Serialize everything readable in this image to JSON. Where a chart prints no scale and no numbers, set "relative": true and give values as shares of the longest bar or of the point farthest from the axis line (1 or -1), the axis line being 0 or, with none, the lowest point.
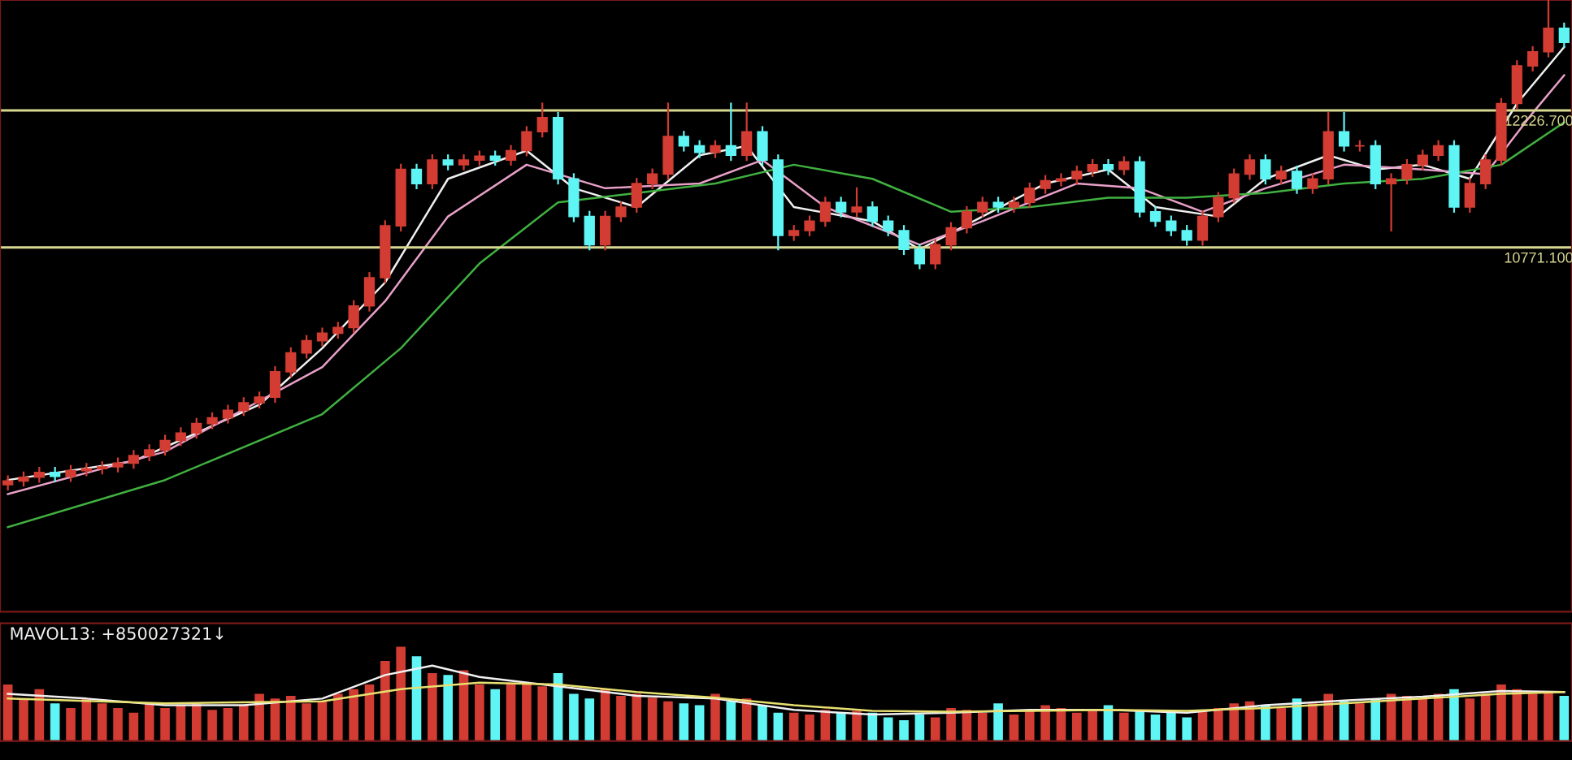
{
  "chart_data": [
    {
      "type": "candlestick",
      "categories": [
        null,
        null,
        null,
        null,
        null,
        null,
        null,
        null,
        null,
        null,
        null,
        null,
        null,
        null,
        null,
        null,
        null,
        null,
        null,
        null,
        null,
        null,
        null,
        null,
        null,
        null,
        null,
        null,
        null,
        null,
        null,
        null,
        null,
        null,
        null,
        null,
        null,
        null,
        null,
        null,
        null,
        null,
        null,
        null,
        null,
        null,
        null,
        null,
        null,
        null,
        null,
        null,
        null,
        null,
        null,
        null,
        null,
        null,
        null,
        null,
        null,
        null,
        null,
        null,
        null,
        null,
        null,
        null,
        null,
        null,
        null,
        null,
        null,
        null,
        null,
        null,
        null,
        null,
        null,
        null,
        null,
        null,
        null,
        null,
        null,
        null,
        null,
        null,
        null,
        null,
        null,
        null,
        null,
        null,
        null,
        null,
        null,
        null,
        null,
        null
      ],
      "ohlc": [
        [
          8250,
          8340,
          8200,
          8290
        ],
        [
          8290,
          8380,
          8240,
          8330
        ],
        [
          8330,
          8430,
          8280,
          8380
        ],
        [
          8380,
          8430,
          8290,
          8340
        ],
        [
          8340,
          8450,
          8290,
          8400
        ],
        [
          8400,
          8470,
          8350,
          8420
        ],
        [
          8420,
          8490,
          8370,
          8440
        ],
        [
          8440,
          8530,
          8390,
          8480
        ],
        [
          8480,
          8610,
          8430,
          8560
        ],
        [
          8560,
          8670,
          8510,
          8620
        ],
        [
          8620,
          8770,
          8570,
          8720
        ],
        [
          8720,
          8850,
          8670,
          8800
        ],
        [
          8800,
          8950,
          8750,
          8900
        ],
        [
          8900,
          9010,
          8850,
          8960
        ],
        [
          8960,
          9090,
          8910,
          9040
        ],
        [
          9040,
          9170,
          8990,
          9120
        ],
        [
          9120,
          9230,
          9070,
          9180
        ],
        [
          9180,
          9500,
          9130,
          9450
        ],
        [
          9450,
          9700,
          9400,
          9650
        ],
        [
          9650,
          9830,
          9600,
          9780
        ],
        [
          9780,
          9910,
          9730,
          9860
        ],
        [
          9860,
          9970,
          9810,
          9920
        ],
        [
          9920,
          10200,
          9870,
          10150
        ],
        [
          10150,
          10500,
          10100,
          10450
        ],
        [
          10450,
          11050,
          10400,
          11000
        ],
        [
          11000,
          11650,
          10950,
          11600
        ],
        [
          11600,
          11650,
          11400,
          11450
        ],
        [
          11450,
          11750,
          11400,
          11700
        ],
        [
          11700,
          11750,
          11600,
          11650
        ],
        [
          11650,
          11750,
          11600,
          11700
        ],
        [
          11700,
          11790,
          11650,
          11740
        ],
        [
          11740,
          11790,
          11650,
          11700
        ],
        [
          11700,
          11850,
          11650,
          11800
        ],
        [
          11800,
          12050,
          11750,
          12000
        ],
        [
          12000,
          12300,
          11950,
          12150
        ],
        [
          12150,
          12200,
          11450,
          11500
        ],
        [
          11500,
          11550,
          11050,
          11100
        ],
        [
          11100,
          11150,
          10750,
          10800
        ],
        [
          10800,
          11150,
          10750,
          11100
        ],
        [
          11100,
          11250,
          11050,
          11200
        ],
        [
          11200,
          11500,
          11150,
          11450
        ],
        [
          11450,
          11600,
          11400,
          11550
        ],
        [
          11550,
          12300,
          11500,
          11950
        ],
        [
          11950,
          12000,
          11800,
          11850
        ],
        [
          11850,
          11900,
          11730,
          11780
        ],
        [
          11780,
          11900,
          11730,
          11850
        ],
        [
          11850,
          12300,
          11700,
          11750
        ],
        [
          11750,
          12300,
          11700,
          12000
        ],
        [
          12000,
          12050,
          11650,
          11700
        ],
        [
          11700,
          11750,
          10750,
          10900
        ],
        [
          10900,
          11000,
          10850,
          10950
        ],
        [
          10950,
          11100,
          10900,
          11050
        ],
        [
          11050,
          11300,
          11000,
          11250
        ],
        [
          11250,
          11300,
          11100,
          11150
        ],
        [
          11150,
          11400,
          11100,
          11200
        ],
        [
          11200,
          11250,
          11000,
          11050
        ],
        [
          11050,
          11100,
          10900,
          10950
        ],
        [
          10950,
          11000,
          10700,
          10750
        ],
        [
          10750,
          10800,
          10550,
          10600
        ],
        [
          10600,
          10850,
          10550,
          10800
        ],
        [
          10800,
          11030,
          10750,
          10980
        ],
        [
          10980,
          11200,
          10930,
          11150
        ],
        [
          11150,
          11300,
          11100,
          11250
        ],
        [
          11250,
          11300,
          11150,
          11200
        ],
        [
          11200,
          11300,
          11150,
          11250
        ],
        [
          11250,
          11450,
          11200,
          11400
        ],
        [
          11400,
          11530,
          11350,
          11480
        ],
        [
          11480,
          11550,
          11430,
          11500
        ],
        [
          11500,
          11630,
          11450,
          11580
        ],
        [
          11580,
          11700,
          11530,
          11650
        ],
        [
          11650,
          11700,
          11550,
          11600
        ],
        [
          11600,
          11730,
          11550,
          11680
        ],
        [
          11680,
          11730,
          11100,
          11150
        ],
        [
          11150,
          11200,
          11000,
          11050
        ],
        [
          11050,
          11100,
          10900,
          10950
        ],
        [
          10950,
          11000,
          10800,
          10850
        ],
        [
          10850,
          11150,
          10800,
          11100
        ],
        [
          11100,
          11350,
          11050,
          11300
        ],
        [
          11300,
          11600,
          11250,
          11550
        ],
        [
          11550,
          11750,
          11500,
          11700
        ],
        [
          11700,
          11750,
          11450,
          11500
        ],
        [
          11500,
          11630,
          11450,
          11580
        ],
        [
          11580,
          11630,
          11350,
          11400
        ],
        [
          11400,
          11550,
          11350,
          11500
        ],
        [
          11500,
          12200,
          11450,
          12000
        ],
        [
          12000,
          12200,
          11800,
          11850
        ],
        [
          11850,
          11900,
          11800,
          11850
        ],
        [
          11850,
          11900,
          11400,
          11450
        ],
        [
          11450,
          11550,
          10950,
          11500
        ],
        [
          11500,
          11700,
          11450,
          11650
        ],
        [
          11650,
          11800,
          11600,
          11750
        ],
        [
          11750,
          11900,
          11700,
          11850
        ],
        [
          11850,
          11900,
          11150,
          11200
        ],
        [
          11200,
          11500,
          11150,
          11450
        ],
        [
          11450,
          11750,
          11400,
          11700
        ],
        [
          11700,
          12350,
          11650,
          12300
        ],
        [
          12300,
          12750,
          12250,
          12700
        ],
        [
          12700,
          12900,
          12650,
          12850
        ],
        [
          12850,
          13400,
          12800,
          13100
        ],
        [
          13100,
          13150,
          12900,
          12950
        ]
      ],
      "colors": [
        "#d23c32",
        "#d23c32",
        "#d23c32",
        "#5ff5f5",
        "#d23c32",
        "#d23c32",
        "#d23c32",
        "#d23c32",
        "#d23c32",
        "#d23c32",
        "#d23c32",
        "#d23c32",
        "#d23c32",
        "#d23c32",
        "#d23c32",
        "#d23c32",
        "#d23c32",
        "#d23c32",
        "#d23c32",
        "#d23c32",
        "#d23c32",
        "#d23c32",
        "#d23c32",
        "#d23c32",
        "#d23c32",
        "#d23c32",
        "#5ff5f5",
        "#d23c32",
        "#5ff5f5",
        "#d23c32",
        "#d23c32",
        "#5ff5f5",
        "#d23c32",
        "#d23c32",
        "#d23c32",
        "#5ff5f5",
        "#5ff5f5",
        "#5ff5f5",
        "#d23c32",
        "#d23c32",
        "#d23c32",
        "#d23c32",
        "#d23c32",
        "#5ff5f5",
        "#5ff5f5",
        "#d23c32",
        "#5ff5f5",
        "#d23c32",
        "#5ff5f5",
        "#5ff5f5",
        "#d23c32",
        "#d23c32",
        "#d23c32",
        "#5ff5f5",
        "#d23c32",
        "#5ff5f5",
        "#5ff5f5",
        "#5ff5f5",
        "#5ff5f5",
        "#d23c32",
        "#d23c32",
        "#d23c32",
        "#d23c32",
        "#5ff5f5",
        "#d23c32",
        "#d23c32",
        "#d23c32",
        "#d23c32",
        "#d23c32",
        "#d23c32",
        "#5ff5f5",
        "#d23c32",
        "#5ff5f5",
        "#5ff5f5",
        "#5ff5f5",
        "#5ff5f5",
        "#d23c32",
        "#d23c32",
        "#d23c32",
        "#d23c32",
        "#5ff5f5",
        "#d23c32",
        "#5ff5f5",
        "#d23c32",
        "#d23c32",
        "#5ff5f5",
        "#d23c32",
        "#5ff5f5",
        "#d23c32",
        "#d23c32",
        "#d23c32",
        "#d23c32",
        "#5ff5f5",
        "#d23c32",
        "#d23c32",
        "#d23c32",
        "#d23c32",
        "#d23c32",
        "#d23c32",
        "#5ff5f5"
      ],
      "series": [
        {
          "type": "line",
          "color": "#f0f0f0",
          "values": [
            8300,
            null,
            null,
            null,
            null,
            null,
            null,
            null,
            8500,
            null,
            null,
            null,
            null,
            null,
            null,
            null,
            9100,
            null,
            null,
            null,
            9700,
            null,
            null,
            null,
            10400,
            null,
            null,
            null,
            11500,
            null,
            null,
            null,
            null,
            11800,
            null,
            null,
            11400,
            null,
            null,
            null,
            11200,
            null,
            null,
            null,
            11750,
            null,
            null,
            11850,
            null,
            null,
            11200,
            null,
            null,
            null,
            null,
            11050,
            null,
            null,
            10750,
            null,
            null,
            null,
            11100,
            null,
            null,
            null,
            11450,
            null,
            null,
            null,
            11600,
            null,
            null,
            11200,
            null,
            null,
            null,
            11100,
            null,
            null,
            11500,
            null,
            null,
            null,
            11750,
            null,
            null,
            11600,
            null,
            null,
            11650,
            null,
            null,
            11500,
            null,
            null,
            12300,
            null,
            null,
            12900
          ]
        },
        {
          "type": "line",
          "color": "#e8a0c8",
          "values": [
            8150,
            null,
            null,
            null,
            null,
            null,
            null,
            null,
            null,
            null,
            8600,
            null,
            null,
            null,
            null,
            null,
            null,
            null,
            null,
            null,
            9500,
            null,
            null,
            null,
            10200,
            null,
            null,
            null,
            11100,
            null,
            null,
            null,
            null,
            11650,
            null,
            null,
            null,
            null,
            11400,
            null,
            null,
            null,
            null,
            null,
            11450,
            null,
            null,
            null,
            11700,
            null,
            null,
            null,
            11200,
            null,
            null,
            null,
            null,
            null,
            10800,
            null,
            null,
            null,
            11050,
            null,
            null,
            null,
            null,
            null,
            11450,
            null,
            null,
            null,
            11400,
            null,
            null,
            null,
            11150,
            null,
            null,
            null,
            11400,
            null,
            null,
            null,
            null,
            11650,
            null,
            null,
            null,
            null,
            11600,
            null,
            null,
            null,
            11550,
            null,
            null,
            12200,
            null,
            12600
          ]
        },
        {
          "type": "line",
          "color": "#40b040",
          "values": [
            7800,
            null,
            null,
            null,
            null,
            null,
            null,
            null,
            null,
            null,
            8300,
            null,
            null,
            null,
            null,
            null,
            null,
            null,
            null,
            null,
            9000,
            null,
            null,
            null,
            null,
            9700,
            null,
            null,
            null,
            null,
            10600,
            null,
            null,
            null,
            null,
            11250,
            null,
            null,
            null,
            null,
            11350,
            null,
            null,
            null,
            null,
            11450,
            null,
            null,
            null,
            null,
            11650,
            null,
            null,
            null,
            null,
            11500,
            null,
            null,
            null,
            null,
            11150,
            null,
            null,
            null,
            null,
            11200,
            null,
            null,
            null,
            null,
            11300,
            null,
            null,
            null,
            null,
            11300,
            null,
            null,
            null,
            null,
            11350,
            null,
            null,
            null,
            null,
            11450,
            null,
            null,
            null,
            null,
            11500,
            null,
            null,
            null,
            null,
            11650,
            null,
            null,
            null,
            12100
          ]
        }
      ],
      "ylim": [
        6900,
        13400
      ],
      "ref_lines": [
        {
          "axis": "y",
          "value": 12226.7,
          "label": "12226.700",
          "color": "#d8d890"
        },
        {
          "axis": "y",
          "value": 10771.1,
          "label": "10771.100",
          "color": "#d8d890"
        }
      ],
      "tick_labels": false
    },
    {
      "type": "bar",
      "relative": true,
      "categories": [
        null,
        null,
        null,
        null,
        null,
        null,
        null,
        null,
        null,
        null,
        null,
        null,
        null,
        null,
        null,
        null,
        null,
        null,
        null,
        null,
        null,
        null,
        null,
        null,
        null,
        null,
        null,
        null,
        null,
        null,
        null,
        null,
        null,
        null,
        null,
        null,
        null,
        null,
        null,
        null,
        null,
        null,
        null,
        null,
        null,
        null,
        null,
        null,
        null,
        null,
        null,
        null,
        null,
        null,
        null,
        null,
        null,
        null,
        null,
        null,
        null,
        null,
        null,
        null,
        null,
        null,
        null,
        null,
        null,
        null,
        null,
        null,
        null,
        null,
        null,
        null,
        null,
        null,
        null,
        null,
        null,
        null,
        null,
        null,
        null,
        null,
        null,
        null,
        null,
        null,
        null,
        null,
        null,
        null,
        null,
        null,
        null,
        null,
        null,
        null
      ],
      "annotations": [
        "MAVOL13: +850027321↓"
      ],
      "series": [
        {
          "type": "bar",
          "values": [
            0.6,
            0.45,
            0.55,
            0.4,
            0.35,
            0.45,
            0.4,
            0.35,
            0.3,
            0.4,
            0.35,
            0.38,
            0.4,
            0.33,
            0.35,
            0.38,
            0.5,
            0.45,
            0.48,
            0.4,
            0.42,
            0.5,
            0.55,
            0.6,
            0.85,
            1.0,
            0.9,
            0.72,
            0.7,
            0.75,
            0.6,
            0.55,
            0.62,
            0.6,
            0.58,
            0.72,
            0.5,
            0.45,
            0.55,
            0.48,
            0.5,
            0.46,
            0.42,
            0.4,
            0.38,
            0.5,
            0.42,
            0.45,
            0.38,
            0.3,
            0.3,
            0.28,
            0.33,
            0.3,
            0.32,
            0.3,
            0.25,
            0.22,
            0.28,
            0.25,
            0.35,
            0.33,
            0.3,
            0.4,
            0.28,
            0.32,
            0.38,
            0.35,
            0.3,
            0.32,
            0.38,
            0.3,
            0.32,
            0.28,
            0.3,
            0.25,
            0.33,
            0.35,
            0.4,
            0.42,
            0.38,
            0.35,
            0.45,
            0.4,
            0.5,
            0.42,
            0.4,
            0.45,
            0.5,
            0.48,
            0.45,
            0.5,
            0.55,
            0.45,
            0.5,
            0.6,
            0.55,
            0.5,
            0.52,
            0.48
          ],
          "colors": [
            "#d23c32",
            "#d23c32",
            "#d23c32",
            "#5ff5f5",
            "#d23c32",
            "#d23c32",
            "#d23c32",
            "#d23c32",
            "#d23c32",
            "#d23c32",
            "#d23c32",
            "#d23c32",
            "#d23c32",
            "#d23c32",
            "#d23c32",
            "#d23c32",
            "#d23c32",
            "#d23c32",
            "#d23c32",
            "#d23c32",
            "#d23c32",
            "#d23c32",
            "#d23c32",
            "#d23c32",
            "#d23c32",
            "#d23c32",
            "#5ff5f5",
            "#d23c32",
            "#5ff5f5",
            "#d23c32",
            "#d23c32",
            "#5ff5f5",
            "#d23c32",
            "#d23c32",
            "#d23c32",
            "#5ff5f5",
            "#5ff5f5",
            "#5ff5f5",
            "#d23c32",
            "#d23c32",
            "#d23c32",
            "#d23c32",
            "#d23c32",
            "#5ff5f5",
            "#5ff5f5",
            "#d23c32",
            "#5ff5f5",
            "#d23c32",
            "#5ff5f5",
            "#5ff5f5",
            "#d23c32",
            "#d23c32",
            "#d23c32",
            "#5ff5f5",
            "#d23c32",
            "#5ff5f5",
            "#5ff5f5",
            "#5ff5f5",
            "#5ff5f5",
            "#d23c32",
            "#d23c32",
            "#d23c32",
            "#d23c32",
            "#5ff5f5",
            "#d23c32",
            "#d23c32",
            "#d23c32",
            "#d23c32",
            "#d23c32",
            "#d23c32",
            "#5ff5f5",
            "#d23c32",
            "#5ff5f5",
            "#5ff5f5",
            "#5ff5f5",
            "#5ff5f5",
            "#d23c32",
            "#d23c32",
            "#d23c32",
            "#d23c32",
            "#5ff5f5",
            "#d23c32",
            "#5ff5f5",
            "#d23c32",
            "#d23c32",
            "#5ff5f5",
            "#d23c32",
            "#5ff5f5",
            "#d23c32",
            "#d23c32",
            "#d23c32",
            "#d23c32",
            "#5ff5f5",
            "#d23c32",
            "#d23c32",
            "#d23c32",
            "#d23c32",
            "#d23c32",
            "#d23c32",
            "#5ff5f5"
          ]
        },
        {
          "type": "line",
          "color": "#f0f0f0",
          "values": [
            0.5,
            null,
            null,
            null,
            null,
            0.45,
            null,
            null,
            null,
            null,
            0.38,
            null,
            null,
            null,
            null,
            0.38,
            null,
            null,
            null,
            null,
            0.45,
            null,
            null,
            null,
            0.7,
            null,
            null,
            0.8,
            null,
            null,
            0.68,
            null,
            null,
            null,
            null,
            0.58,
            null,
            null,
            null,
            null,
            0.48,
            null,
            null,
            null,
            null,
            0.45,
            null,
            null,
            null,
            null,
            0.33,
            null,
            null,
            null,
            null,
            0.28,
            null,
            null,
            null,
            null,
            0.3,
            null,
            null,
            null,
            null,
            0.33,
            null,
            null,
            null,
            null,
            0.33,
            null,
            null,
            null,
            null,
            0.3,
            null,
            null,
            null,
            null,
            0.38,
            null,
            null,
            null,
            null,
            0.43,
            null,
            null,
            null,
            null,
            0.47,
            null,
            null,
            null,
            null,
            0.53,
            null,
            null,
            null,
            0.52
          ]
        },
        {
          "type": "line",
          "color": "#e8e070",
          "values": [
            0.45,
            null,
            null,
            null,
            null,
            null,
            null,
            null,
            null,
            null,
            0.4,
            null,
            null,
            null,
            null,
            null,
            null,
            null,
            null,
            null,
            0.42,
            null,
            null,
            null,
            null,
            0.55,
            null,
            null,
            null,
            null,
            0.62,
            null,
            null,
            null,
            null,
            0.6,
            null,
            null,
            null,
            null,
            0.52,
            null,
            null,
            null,
            null,
            0.46,
            null,
            null,
            null,
            null,
            0.38,
            null,
            null,
            null,
            null,
            0.32,
            null,
            null,
            null,
            null,
            0.31,
            null,
            null,
            null,
            null,
            0.32,
            null,
            null,
            null,
            null,
            0.33,
            null,
            null,
            null,
            null,
            0.32,
            null,
            null,
            null,
            null,
            0.35,
            null,
            null,
            null,
            null,
            0.4,
            null,
            null,
            null,
            null,
            0.45,
            null,
            null,
            null,
            null,
            0.5,
            null,
            null,
            null,
            0.52
          ]
        }
      ],
      "tick_labels": false
    }
  ]
}
